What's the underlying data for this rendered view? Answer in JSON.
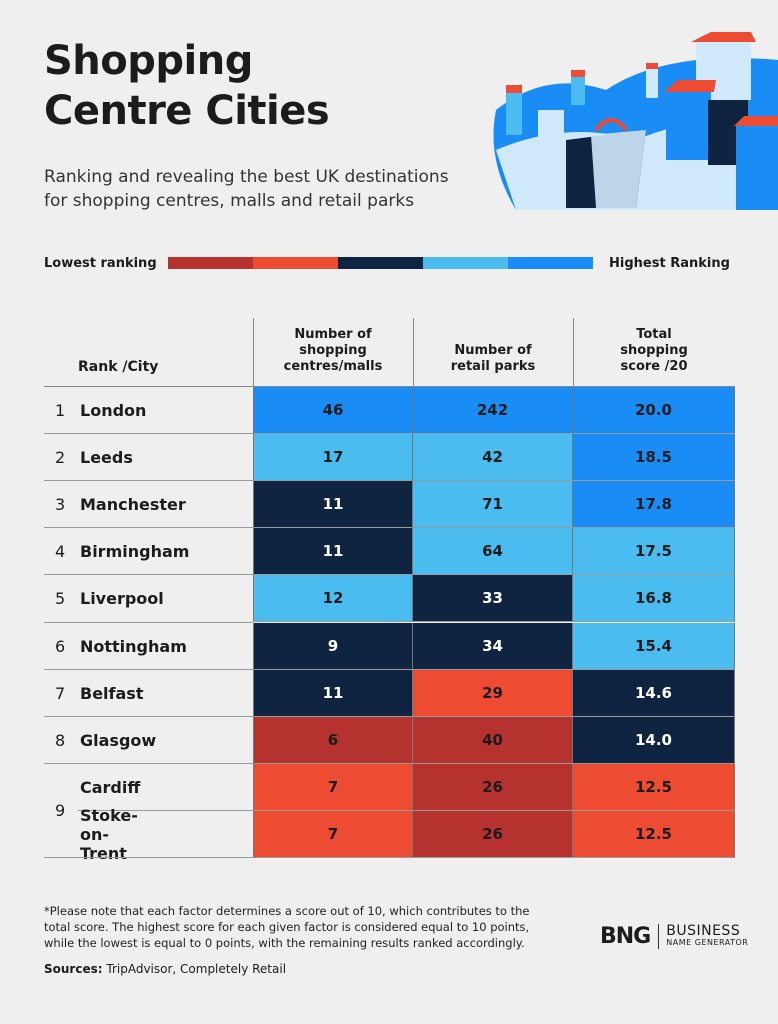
{
  "header": {
    "title_lines": [
      "Shopping",
      "Centre Cities"
    ],
    "subtitle_lines": [
      "Ranking and revealing the best UK destinations",
      "for shopping centres, malls and retail parks"
    ]
  },
  "legend": {
    "low": "Lowest ranking",
    "high": "Highest Ranking",
    "colors": [
      "#b5322e",
      "#ee4b33",
      "#0f2440",
      "#4bbcef",
      "#1a8cf5"
    ]
  },
  "table": {
    "columns": [
      "Rank /City",
      "Number of shopping centres/malls",
      "Number of retail parks",
      "Total shopping score /20"
    ],
    "rows": [
      {
        "rank": "1",
        "city": "London",
        "cells": [
          {
            "text": "46",
            "color": "#1a8cf5"
          },
          {
            "text": "242",
            "color": "#1a8cf5"
          },
          {
            "text": "20.0",
            "color": "#1a8cf5"
          }
        ]
      },
      {
        "rank": "2",
        "city": "Leeds",
        "cells": [
          {
            "text": "17",
            "color": "#4bbcef"
          },
          {
            "text": "42",
            "color": "#4bbcef"
          },
          {
            "text": "18.5",
            "color": "#1a8cf5"
          }
        ]
      },
      {
        "rank": "3",
        "city": "Manchester",
        "cells": [
          {
            "text": "11",
            "color": "#0f2440"
          },
          {
            "text": "71",
            "color": "#4bbcef"
          },
          {
            "text": "17.8",
            "color": "#1a8cf5"
          }
        ]
      },
      {
        "rank": "4",
        "city": "Birmingham",
        "cells": [
          {
            "text": "11",
            "color": "#0f2440"
          },
          {
            "text": "64",
            "color": "#4bbcef"
          },
          {
            "text": "17.5",
            "color": "#4bbcef"
          }
        ]
      },
      {
        "rank": "5",
        "city": "Liverpool",
        "cells": [
          {
            "text": "12",
            "color": "#4bbcef"
          },
          {
            "text": "33",
            "color": "#0f2440"
          },
          {
            "text": "16.8",
            "color": "#4bbcef"
          }
        ]
      },
      {
        "rank": "6",
        "city": "Nottingham",
        "cells": [
          {
            "text": "9",
            "color": "#0f2440"
          },
          {
            "text": "34",
            "color": "#0f2440"
          },
          {
            "text": "15.4",
            "color": "#4bbcef"
          }
        ]
      },
      {
        "rank": "7",
        "city": "Belfast",
        "cells": [
          {
            "text": "11",
            "color": "#0f2440"
          },
          {
            "text": "29",
            "color": "#ee4b33"
          },
          {
            "text": "14.6",
            "color": "#0f2440"
          }
        ]
      },
      {
        "rank": "8",
        "city": "Glasgow",
        "cells": [
          {
            "text": "6",
            "color": "#b5322e"
          },
          {
            "text": "40",
            "color": "#b5322e"
          },
          {
            "text": "14.0",
            "color": "#0f2440"
          }
        ]
      },
      {
        "rank": "9",
        "city": "Cardiff",
        "cells": [
          {
            "text": "7",
            "color": "#ee4b33"
          },
          {
            "text": "26",
            "color": "#b5322e"
          },
          {
            "text": "12.5",
            "color": "#ee4b33"
          }
        ]
      },
      {
        "rank": null,
        "city": "Stoke-on-Trent",
        "cells": [
          {
            "text": "7",
            "color": "#ee4b33"
          },
          {
            "text": "26",
            "color": "#b5322e"
          },
          {
            "text": "12.5",
            "color": "#ee4b33"
          }
        ]
      }
    ]
  },
  "footer": {
    "note": "*Please note that each factor determines a score out of 10, which contributes to the total score. The highest score for each given factor is considered equal to 10 points, while the lowest is equal to 0 points, with the remaining results ranked accordingly.",
    "sources_label": "Sources:",
    "sources": "TripAdvisor, Completely Retail"
  },
  "logo": {
    "mark": "BNG",
    "line1": "BUSINESS",
    "line2": "NAME GENERATOR"
  }
}
